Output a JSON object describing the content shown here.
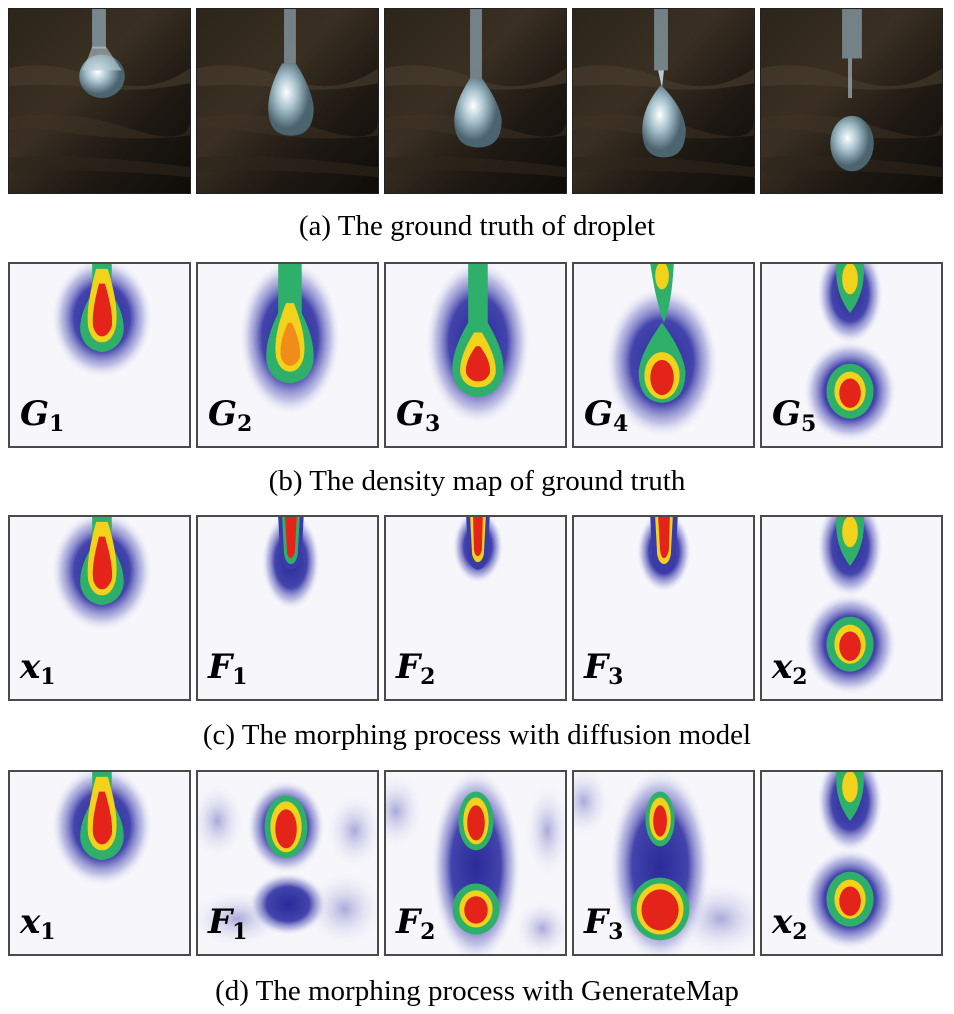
{
  "rows": [
    {
      "caption": "(a)  The ground truth of droplet",
      "labels": []
    },
    {
      "caption": "(b)  The density map of ground truth",
      "labels": [
        {
          "base": "G",
          "sub": "1"
        },
        {
          "base": "G",
          "sub": "2"
        },
        {
          "base": "G",
          "sub": "3"
        },
        {
          "base": "G",
          "sub": "4"
        },
        {
          "base": "G",
          "sub": "5"
        }
      ]
    },
    {
      "caption": "(c)  The morphing process with diffusion model",
      "labels": [
        {
          "base": "x",
          "sub": "1"
        },
        {
          "base": "F",
          "sub": "1"
        },
        {
          "base": "F",
          "sub": "2"
        },
        {
          "base": "F",
          "sub": "3"
        },
        {
          "base": "x",
          "sub": "2"
        }
      ]
    },
    {
      "caption": "(d)  The morphing process with GenerateMap",
      "labels": [
        {
          "base": "x",
          "sub": "1"
        },
        {
          "base": "F",
          "sub": "1"
        },
        {
          "base": "F",
          "sub": "2"
        },
        {
          "base": "F",
          "sub": "3"
        },
        {
          "base": "x",
          "sub": "2"
        }
      ]
    }
  ],
  "colors": {
    "background": "#f6f6fb",
    "low": "#3a3aa8",
    "mid": "#2fb06a",
    "high": "#e4231a"
  }
}
